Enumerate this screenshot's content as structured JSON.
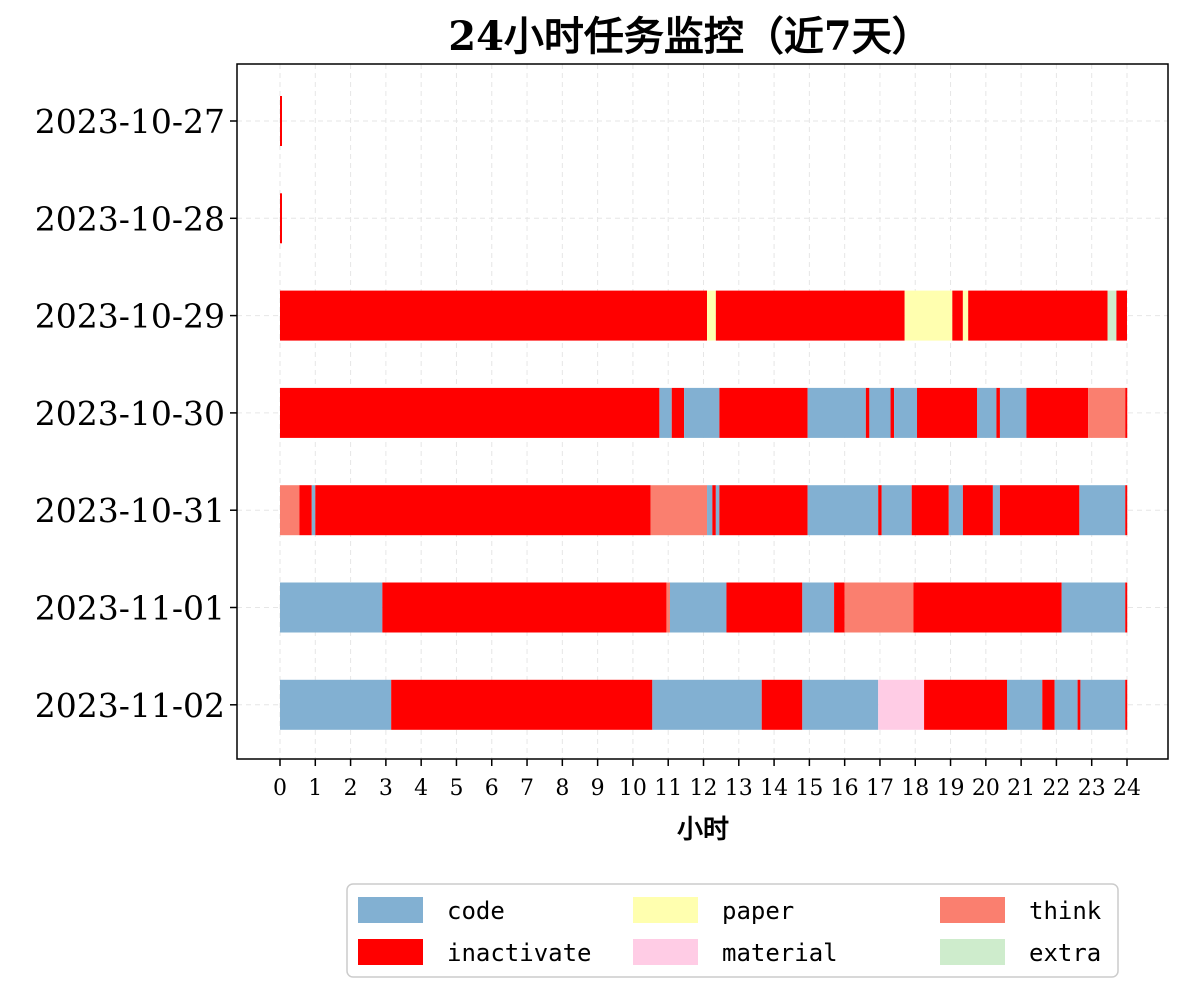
{
  "chart_data": {
    "type": "bar",
    "orientation": "horizontal-timeline",
    "title": "24小时任务监控（近7天）",
    "xlabel": "小时",
    "ylabel": "",
    "xlim": [
      -1.2,
      25.2
    ],
    "xticks": [
      "0",
      "1",
      "2",
      "3",
      "4",
      "5",
      "6",
      "7",
      "8",
      "9",
      "10",
      "11",
      "12",
      "13",
      "14",
      "15",
      "16",
      "17",
      "18",
      "19",
      "20",
      "21",
      "22",
      "23",
      "24"
    ],
    "grid": true,
    "legend_position": "bottom-center",
    "categories": [
      "2023-10-27",
      "2023-10-28",
      "2023-10-29",
      "2023-10-30",
      "2023-10-31",
      "2023-11-01",
      "2023-11-02"
    ],
    "legend": [
      {
        "name": "code",
        "color": "#82b0d2"
      },
      {
        "name": "inactivate",
        "color": "#ff0000"
      },
      {
        "name": "paper",
        "color": "#ffffaf"
      },
      {
        "name": "material",
        "color": "#ffcce5"
      },
      {
        "name": "think",
        "color": "#fa7f6f"
      },
      {
        "name": "extra",
        "color": "#ceeccc"
      }
    ],
    "rows": [
      {
        "date": "2023-10-27",
        "segments": [
          {
            "task": "inactivate",
            "start": 0.0,
            "end": 0.05
          }
        ]
      },
      {
        "date": "2023-10-28",
        "segments": [
          {
            "task": "inactivate",
            "start": 0.0,
            "end": 0.05
          }
        ]
      },
      {
        "date": "2023-10-29",
        "segments": [
          {
            "task": "inactivate",
            "start": 0.0,
            "end": 12.1
          },
          {
            "task": "paper",
            "start": 12.1,
            "end": 12.35
          },
          {
            "task": "inactivate",
            "start": 12.35,
            "end": 17.7
          },
          {
            "task": "paper",
            "start": 17.7,
            "end": 19.05
          },
          {
            "task": "inactivate",
            "start": 19.05,
            "end": 19.35
          },
          {
            "task": "paper",
            "start": 19.35,
            "end": 19.5
          },
          {
            "task": "inactivate",
            "start": 19.5,
            "end": 23.45
          },
          {
            "task": "extra",
            "start": 23.45,
            "end": 23.7
          },
          {
            "task": "inactivate",
            "start": 23.7,
            "end": 24.0
          }
        ]
      },
      {
        "date": "2023-10-30",
        "segments": [
          {
            "task": "inactivate",
            "start": 0.0,
            "end": 10.75
          },
          {
            "task": "code",
            "start": 10.75,
            "end": 11.1
          },
          {
            "task": "inactivate",
            "start": 11.1,
            "end": 11.45
          },
          {
            "task": "code",
            "start": 11.45,
            "end": 12.45
          },
          {
            "task": "inactivate",
            "start": 12.45,
            "end": 14.95
          },
          {
            "task": "code",
            "start": 14.95,
            "end": 16.6
          },
          {
            "task": "inactivate",
            "start": 16.6,
            "end": 16.7
          },
          {
            "task": "code",
            "start": 16.7,
            "end": 17.3
          },
          {
            "task": "inactivate",
            "start": 17.3,
            "end": 17.4
          },
          {
            "task": "code",
            "start": 17.4,
            "end": 18.05
          },
          {
            "task": "inactivate",
            "start": 18.05,
            "end": 19.75
          },
          {
            "task": "code",
            "start": 19.75,
            "end": 20.3
          },
          {
            "task": "inactivate",
            "start": 20.3,
            "end": 20.4
          },
          {
            "task": "code",
            "start": 20.4,
            "end": 21.15
          },
          {
            "task": "inactivate",
            "start": 21.15,
            "end": 22.9
          },
          {
            "task": "think",
            "start": 22.9,
            "end": 23.95
          },
          {
            "task": "inactivate",
            "start": 23.95,
            "end": 24.0
          }
        ]
      },
      {
        "date": "2023-10-31",
        "segments": [
          {
            "task": "think",
            "start": 0.0,
            "end": 0.55
          },
          {
            "task": "inactivate",
            "start": 0.55,
            "end": 0.9
          },
          {
            "task": "code",
            "start": 0.9,
            "end": 1.0
          },
          {
            "task": "inactivate",
            "start": 1.0,
            "end": 10.5
          },
          {
            "task": "think",
            "start": 10.5,
            "end": 12.1
          },
          {
            "task": "code",
            "start": 12.1,
            "end": 12.25
          },
          {
            "task": "inactivate",
            "start": 12.25,
            "end": 12.35
          },
          {
            "task": "code",
            "start": 12.35,
            "end": 12.45
          },
          {
            "task": "inactivate",
            "start": 12.45,
            "end": 14.95
          },
          {
            "task": "code",
            "start": 14.95,
            "end": 16.95
          },
          {
            "task": "inactivate",
            "start": 16.95,
            "end": 17.05
          },
          {
            "task": "code",
            "start": 17.05,
            "end": 17.9
          },
          {
            "task": "inactivate",
            "start": 17.9,
            "end": 18.95
          },
          {
            "task": "code",
            "start": 18.95,
            "end": 19.35
          },
          {
            "task": "inactivate",
            "start": 19.35,
            "end": 20.2
          },
          {
            "task": "code",
            "start": 20.2,
            "end": 20.4
          },
          {
            "task": "inactivate",
            "start": 20.4,
            "end": 22.65
          },
          {
            "task": "code",
            "start": 22.65,
            "end": 23.95
          },
          {
            "task": "inactivate",
            "start": 23.95,
            "end": 24.0
          }
        ]
      },
      {
        "date": "2023-11-01",
        "segments": [
          {
            "task": "code",
            "start": 0.0,
            "end": 2.9
          },
          {
            "task": "inactivate",
            "start": 2.9,
            "end": 10.95
          },
          {
            "task": "think",
            "start": 10.95,
            "end": 11.05
          },
          {
            "task": "code",
            "start": 11.05,
            "end": 12.65
          },
          {
            "task": "inactivate",
            "start": 12.65,
            "end": 14.8
          },
          {
            "task": "code",
            "start": 14.8,
            "end": 15.7
          },
          {
            "task": "inactivate",
            "start": 15.7,
            "end": 16.0
          },
          {
            "task": "think",
            "start": 16.0,
            "end": 17.95
          },
          {
            "task": "inactivate",
            "start": 17.95,
            "end": 22.15
          },
          {
            "task": "code",
            "start": 22.15,
            "end": 23.95
          },
          {
            "task": "inactivate",
            "start": 23.95,
            "end": 24.0
          }
        ]
      },
      {
        "date": "2023-11-02",
        "segments": [
          {
            "task": "code",
            "start": 0.0,
            "end": 3.15
          },
          {
            "task": "inactivate",
            "start": 3.15,
            "end": 10.55
          },
          {
            "task": "code",
            "start": 10.55,
            "end": 13.65
          },
          {
            "task": "inactivate",
            "start": 13.65,
            "end": 14.8
          },
          {
            "task": "code",
            "start": 14.8,
            "end": 16.95
          },
          {
            "task": "material",
            "start": 16.95,
            "end": 18.25
          },
          {
            "task": "inactivate",
            "start": 18.25,
            "end": 20.6
          },
          {
            "task": "code",
            "start": 20.6,
            "end": 21.6
          },
          {
            "task": "inactivate",
            "start": 21.6,
            "end": 21.95
          },
          {
            "task": "code",
            "start": 21.95,
            "end": 22.6
          },
          {
            "task": "inactivate",
            "start": 22.6,
            "end": 22.68
          },
          {
            "task": "code",
            "start": 22.68,
            "end": 23.95
          },
          {
            "task": "inactivate",
            "start": 23.95,
            "end": 24.0
          }
        ]
      }
    ]
  }
}
